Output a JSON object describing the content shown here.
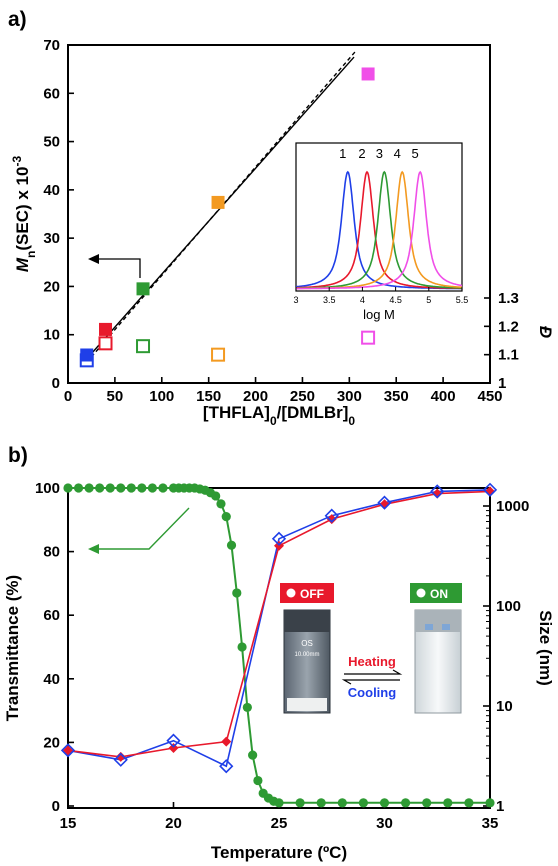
{
  "chart_data": [
    {
      "panel": "a)",
      "type": "scatter",
      "xlabel": "[THFLA]0/[DMLBr]0",
      "ylabel": "Mn(SEC) x 10-3",
      "y2label": "Đ",
      "xlim": [
        0,
        450
      ],
      "ylim": [
        0,
        70
      ],
      "y2_ticks": [
        "1",
        "1.1",
        "1.2",
        "1.3"
      ],
      "x_ticks": [
        "0",
        "50",
        "100",
        "150",
        "200",
        "250",
        "300",
        "350",
        "400",
        "450"
      ],
      "y_ticks": [
        "0",
        "10",
        "20",
        "30",
        "40",
        "50",
        "60",
        "70"
      ],
      "grid": false,
      "series": [
        {
          "role": "Mn",
          "marker": "filled-square",
          "points": [
            {
              "x": 20,
              "y": 5.8,
              "color": "#1f3fe8"
            },
            {
              "x": 40,
              "y": 11.1,
              "color": "#e8192c"
            },
            {
              "x": 80,
              "y": 19.5,
              "color": "#2e9a33"
            },
            {
              "x": 160,
              "y": 37.4,
              "color": "#f39a21"
            },
            {
              "x": 320,
              "y": 64.0,
              "color": "#f04fe8"
            }
          ]
        },
        {
          "role": "dispersity",
          "marker": "open-square",
          "points": [
            {
              "x": 20,
              "y": 1.08,
              "color": "#1f3fe8"
            },
            {
              "x": 40,
              "y": 1.14,
              "color": "#e8192c"
            },
            {
              "x": 80,
              "y": 1.13,
              "color": "#2e9a33"
            },
            {
              "x": 160,
              "y": 1.1,
              "color": "#f39a21"
            },
            {
              "x": 320,
              "y": 1.16,
              "color": "#f04fe8"
            }
          ]
        }
      ],
      "lines": [
        {
          "style": "solid",
          "from": [
            20,
            5.0
          ],
          "to": [
            305,
            67.5
          ]
        },
        {
          "style": "dashed",
          "from": [
            20,
            4.3
          ],
          "to": [
            308,
            69.0
          ]
        }
      ],
      "arrow": {
        "direction": "left"
      },
      "inset": {
        "type": "line",
        "xlabel": "log M",
        "xlim": [
          3,
          5.5
        ],
        "x_ticks": [
          "3",
          "3.5",
          "4",
          "4.5",
          "5",
          "5.5"
        ],
        "traces": [
          {
            "label": "1",
            "peak": 3.78,
            "color": "#1f3fe8"
          },
          {
            "label": "2",
            "peak": 4.07,
            "color": "#e8192c"
          },
          {
            "label": "3",
            "peak": 4.33,
            "color": "#2e9a33"
          },
          {
            "label": "4",
            "peak": 4.6,
            "color": "#f39a21"
          },
          {
            "label": "5",
            "peak": 4.87,
            "color": "#f04fe8"
          }
        ]
      }
    },
    {
      "panel": "b)",
      "type": "line",
      "xlabel": "Temperature (ºC)",
      "ylabel": "Transmittance (%)",
      "y2label": "Size (nm)",
      "xlim": [
        15,
        35
      ],
      "ylim": [
        0,
        100
      ],
      "y2_scale": "log",
      "y2lim": [
        1,
        1700
      ],
      "x_ticks": [
        "15",
        "20",
        "25",
        "30",
        "35"
      ],
      "y_ticks": [
        "0",
        "20",
        "40",
        "60",
        "80",
        "100"
      ],
      "y2_ticks": [
        "1",
        "10",
        "100",
        "1000"
      ],
      "grid": false,
      "series": [
        {
          "role": "transmittance",
          "color": "#2e9a33",
          "marker": "filled-circle",
          "x": [
            15,
            15.5,
            16,
            16.5,
            17,
            17.5,
            18,
            18.5,
            19,
            19.5,
            20,
            20.25,
            20.5,
            20.75,
            21,
            21.25,
            21.5,
            21.75,
            22,
            22.25,
            22.5,
            22.75,
            23,
            23.25,
            23.5,
            23.75,
            24,
            24.25,
            24.5,
            24.75,
            25,
            26,
            27,
            28,
            29,
            30,
            31,
            32,
            33,
            34,
            35
          ],
          "y": [
            100,
            100,
            100,
            100,
            100,
            100,
            100,
            100,
            100,
            100,
            100,
            100,
            100,
            100,
            100,
            99.7,
            99.3,
            98.5,
            97.5,
            95,
            91,
            82,
            67,
            50,
            31,
            16,
            8,
            4,
            2.5,
            1.5,
            1,
            1,
            1,
            1,
            1,
            1,
            1,
            1,
            1,
            1,
            1
          ]
        },
        {
          "role": "size-heating",
          "color": "#e8192c",
          "marker": "filled-diamond",
          "x": [
            15,
            17.5,
            20,
            22.5,
            25,
            27.5,
            30,
            32.5,
            35
          ],
          "y": [
            3.6,
            3.1,
            3.8,
            4.4,
            400,
            740,
            1040,
            1330,
            1400
          ]
        },
        {
          "role": "size-cooling",
          "color": "#1f3fe8",
          "marker": "open-diamond",
          "x": [
            15,
            17.5,
            20,
            22.5,
            25,
            27.5,
            30,
            32.5,
            35
          ],
          "y": [
            3.6,
            2.9,
            4.5,
            2.5,
            470,
            800,
            1080,
            1400,
            1450
          ]
        }
      ],
      "arrow": {
        "direction": "left",
        "color": "#2e9a33"
      },
      "photos": {
        "off_label": "OFF",
        "on_label": "ON",
        "heating_label": "Heating",
        "cooling_label": "Cooling",
        "cuvette_text1": "OS",
        "cuvette_text2": "10.00mm",
        "off_color": "#e8192c",
        "on_color": "#2e9a33",
        "heating_color": "#e8192c",
        "cooling_color": "#1f3fe8"
      }
    }
  ]
}
